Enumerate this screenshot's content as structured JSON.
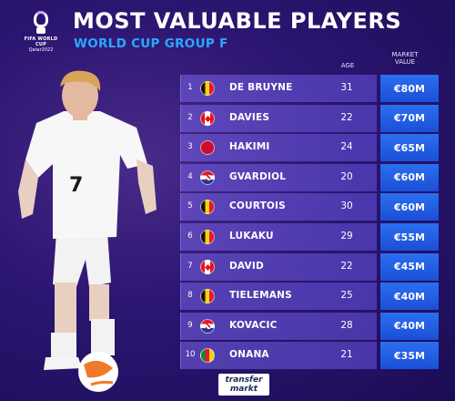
{
  "header": {
    "title": "MOST VALUABLE PLAYERS",
    "subtitle": "WORLD CUP GROUP F",
    "logo_line1": "FIFA WORLD CUP",
    "logo_line2": "Qatar2022"
  },
  "columns": {
    "age": "AGE",
    "market_value_line1": "MARKET",
    "market_value_line2": "VALUE"
  },
  "players": [
    {
      "rank": "1",
      "name": "DE BRUYNE",
      "age": "31",
      "value": "€80M",
      "flag": "belgium"
    },
    {
      "rank": "2",
      "name": "DAVIES",
      "age": "22",
      "value": "€70M",
      "flag": "canada"
    },
    {
      "rank": "3",
      "name": "HAKIMI",
      "age": "24",
      "value": "€65M",
      "flag": "morocco"
    },
    {
      "rank": "4",
      "name": "GVARDIOL",
      "age": "20",
      "value": "€60M",
      "flag": "croatia"
    },
    {
      "rank": "5",
      "name": "COURTOIS",
      "age": "30",
      "value": "€60M",
      "flag": "belgium"
    },
    {
      "rank": "6",
      "name": "LUKAKU",
      "age": "29",
      "value": "€55M",
      "flag": "belgium"
    },
    {
      "rank": "7",
      "name": "DAVID",
      "age": "22",
      "value": "€45M",
      "flag": "canada"
    },
    {
      "rank": "8",
      "name": "TIELEMANS",
      "age": "25",
      "value": "€40M",
      "flag": "belgium"
    },
    {
      "rank": "9",
      "name": "KOVACIC",
      "age": "28",
      "value": "€40M",
      "flag": "croatia"
    },
    {
      "rank": "10",
      "name": "ONANA",
      "age": "21",
      "value": "€35M",
      "flag": "cameroon"
    }
  ],
  "player_image": {
    "shirt_number": "7"
  },
  "footer": {
    "brand_line1": "transfer",
    "brand_line2": "markt"
  }
}
